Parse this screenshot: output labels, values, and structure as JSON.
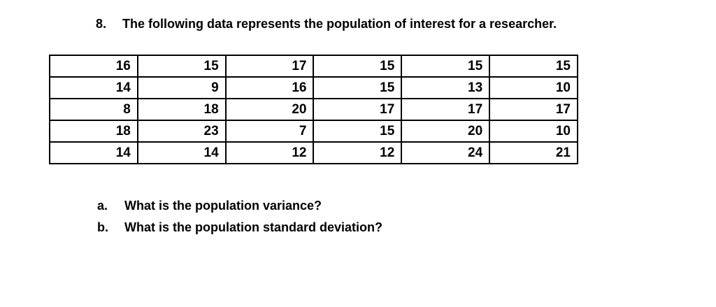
{
  "problem": {
    "number": "8.",
    "statement": "The following data represents the population of interest for a researcher."
  },
  "table": {
    "rows": [
      [
        "16",
        "15",
        "17",
        "15",
        "15",
        "15"
      ],
      [
        "14",
        "9",
        "16",
        "15",
        "13",
        "10"
      ],
      [
        "8",
        "18",
        "20",
        "17",
        "17",
        "17"
      ],
      [
        "18",
        "23",
        "7",
        "15",
        "20",
        "10"
      ],
      [
        "14",
        "14",
        "12",
        "12",
        "24",
        "21"
      ]
    ]
  },
  "questions": [
    {
      "label": "a.",
      "text": "What is the population variance?"
    },
    {
      "label": "b.",
      "text": "What is the population standard deviation?"
    }
  ],
  "colors": {
    "background": "#ffffff",
    "text": "#000000",
    "table_border": "#000000"
  }
}
